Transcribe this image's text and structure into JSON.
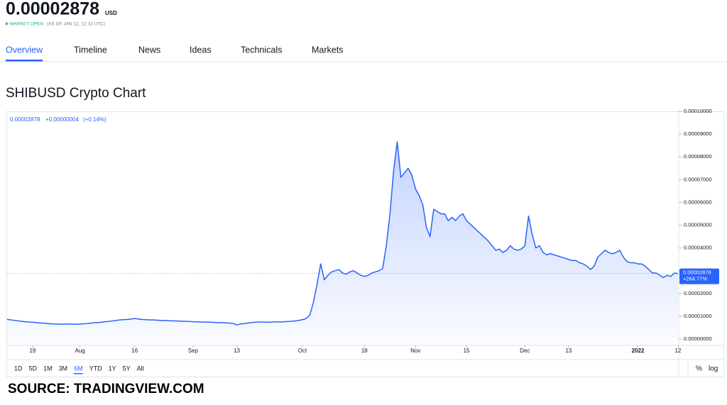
{
  "header": {
    "price": "0.00002878",
    "currency": "USD",
    "status": "MARKET OPEN",
    "as_of": "(AS OF JAN 12, 12:14 UTC)"
  },
  "tabs": [
    "Overview",
    "Timeline",
    "News",
    "Ideas",
    "Technicals",
    "Markets"
  ],
  "active_tab": 0,
  "chart_data": {
    "type": "area",
    "title": "SHIBUSD Crypto Chart",
    "legend": {
      "last": "0.00002878",
      "change": "+0.00000004",
      "change_pct": "(+0.14%)"
    },
    "last_label": {
      "price": "0.00002878",
      "change": "+264.77%"
    },
    "color": "#2962ff",
    "categories": [
      null,
      null,
      null,
      null,
      null,
      null,
      null,
      "19",
      null,
      null,
      null,
      null,
      null,
      null,
      null,
      null,
      null,
      null,
      null,
      null,
      "Aug",
      null,
      null,
      null,
      null,
      null,
      null,
      null,
      null,
      null,
      null,
      null,
      null,
      null,
      null,
      "16",
      null,
      null,
      null,
      null,
      null,
      null,
      null,
      null,
      null,
      null,
      null,
      null,
      null,
      null,
      null,
      "Sep",
      null,
      null,
      null,
      null,
      null,
      null,
      null,
      null,
      null,
      null,
      null,
      "13",
      null,
      null,
      null,
      null,
      null,
      null,
      null,
      null,
      null,
      null,
      null,
      null,
      null,
      null,
      null,
      null,
      null,
      "Oct",
      null,
      null,
      null,
      null,
      null,
      null,
      null,
      null,
      null,
      null,
      null,
      null,
      null,
      null,
      null,
      null,
      "18",
      null,
      null,
      null,
      null,
      null,
      null,
      null,
      null,
      null,
      null,
      null,
      null,
      null,
      "Nov",
      null,
      null,
      null,
      null,
      null,
      null,
      null,
      null,
      null,
      null,
      null,
      null,
      null,
      "15",
      null,
      null,
      null,
      null,
      null,
      null,
      null,
      null,
      null,
      null,
      null,
      null,
      null,
      null,
      null,
      "Dec",
      null,
      null,
      null,
      null,
      null,
      null,
      null,
      null,
      null,
      null,
      null,
      "13",
      null,
      null,
      null,
      null,
      null,
      null,
      null,
      null,
      null,
      null,
      null,
      null,
      null,
      null,
      null,
      null,
      null,
      null,
      "2022",
      null,
      null,
      null,
      null,
      null,
      null,
      null,
      null,
      null,
      null,
      "12"
    ],
    "values": [
      8.7e-06,
      8.4e-06,
      8.2e-06,
      8e-06,
      7.8e-06,
      7.6e-06,
      7.5e-06,
      7.4e-06,
      7.2e-06,
      7e-06,
      7e-06,
      6.8e-06,
      6.7e-06,
      6.6e-06,
      6.6e-06,
      6.5e-06,
      6.6e-06,
      6.6e-06,
      6.5e-06,
      6.5e-06,
      6.6e-06,
      6.7e-06,
      6.8e-06,
      7e-06,
      7.2e-06,
      7.2e-06,
      7.4e-06,
      7.6e-06,
      7.8e-06,
      8e-06,
      8.2e-06,
      8.4e-06,
      8.5e-06,
      8.6e-06,
      8.8e-06,
      9e-06,
      8.8e-06,
      8.6e-06,
      8.5e-06,
      8.4e-06,
      8.4e-06,
      8.3e-06,
      8.2e-06,
      8.2e-06,
      8.1e-06,
      8e-06,
      8e-06,
      7.9e-06,
      7.8e-06,
      7.8e-06,
      7.7e-06,
      7.6e-06,
      7.6e-06,
      7.5e-06,
      7.5e-06,
      7.4e-06,
      7.4e-06,
      7.3e-06,
      7.2e-06,
      7.2e-06,
      7.1e-06,
      7e-06,
      6.8e-06,
      6.2e-06,
      6.6e-06,
      6.8e-06,
      7e-06,
      7.2e-06,
      7.4e-06,
      7.5e-06,
      7.5e-06,
      7.4e-06,
      7.4e-06,
      7.5e-06,
      7.6e-06,
      7.5e-06,
      7.6e-06,
      7.7e-06,
      7.8e-06,
      8e-06,
      8.2e-06,
      8.5e-06,
      9e-06,
      1.05e-05,
      1.6e-05,
      2.4e-05,
      3.3e-05,
      2.6e-05,
      2.8e-05,
      2.95e-05,
      3e-05,
      3.05e-05,
      2.9e-05,
      2.85e-05,
      2.95e-05,
      3e-05,
      2.9e-05,
      2.8e-05,
      2.75e-05,
      2.8e-05,
      2.9e-05,
      2.95e-05,
      3e-05,
      3.1e-05,
      4.1e-05,
      5.5e-05,
      7.4e-05,
      8.66e-05,
      7.1e-05,
      7.3e-05,
      7.5e-05,
      7.2e-05,
      6.6e-05,
      6.3e-05,
      5.9e-05,
      4.9e-05,
      4.5e-05,
      5.7e-05,
      5.6e-05,
      5.5e-05,
      5.5e-05,
      5.2e-05,
      5.35e-05,
      5.2e-05,
      5.4e-05,
      5.5e-05,
      5.2e-05,
      5.05e-05,
      4.9e-05,
      4.75e-05,
      4.6e-05,
      4.45e-05,
      4.3e-05,
      4.1e-05,
      3.9e-05,
      3.95e-05,
      3.8e-05,
      3.9e-05,
      4.1e-05,
      3.95e-05,
      3.9e-05,
      3.95e-05,
      4.1e-05,
      5.4e-05,
      4.6e-05,
      4e-05,
      4.1e-05,
      3.8e-05,
      3.7e-05,
      3.75e-05,
      3.7e-05,
      3.65e-05,
      3.6e-05,
      3.55e-05,
      3.5e-05,
      3.45e-05,
      3.45e-05,
      3.35e-05,
      3.3e-05,
      3.2e-05,
      3.05e-05,
      3.2e-05,
      3.6e-05,
      3.75e-05,
      3.9e-05,
      3.8e-05,
      3.75e-05,
      3.8e-05,
      3.9e-05,
      3.6e-05,
      3.4e-05,
      3.35e-05,
      3.35e-05,
      3.3e-05,
      3.3e-05,
      3.2e-05,
      3.05e-05,
      2.9e-05,
      2.9e-05,
      2.8e-05,
      2.7e-05,
      2.8e-05,
      2.75e-05,
      2.9e-05,
      2.878e-05
    ],
    "ylim": [
      -2.8e-06,
      0.0001
    ],
    "yticks": [
      {
        "value": 0.0001,
        "label": "0.00010000"
      },
      {
        "value": 9e-05,
        "label": "0.00009000"
      },
      {
        "value": 8e-05,
        "label": "0.00008000"
      },
      {
        "value": 7e-05,
        "label": "0.00007000"
      },
      {
        "value": 6e-05,
        "label": "0.00006000"
      },
      {
        "value": 5e-05,
        "label": "0.00005000"
      },
      {
        "value": 4e-05,
        "label": "0.00004000"
      },
      {
        "value": 3e-05,
        "label": "0.00003000"
      },
      {
        "value": 2e-05,
        "label": "0.00002000"
      },
      {
        "value": 1e-05,
        "label": "0.00001000"
      },
      {
        "value": 0,
        "label": "0.00000000"
      }
    ]
  },
  "ranges": [
    "1D",
    "5D",
    "1M",
    "3M",
    "6M",
    "YTD",
    "1Y",
    "5Y",
    "All"
  ],
  "active_range": 4,
  "scale_options": [
    "%",
    "log"
  ],
  "source": "SOURCE: TRADINGVIEW.COM"
}
